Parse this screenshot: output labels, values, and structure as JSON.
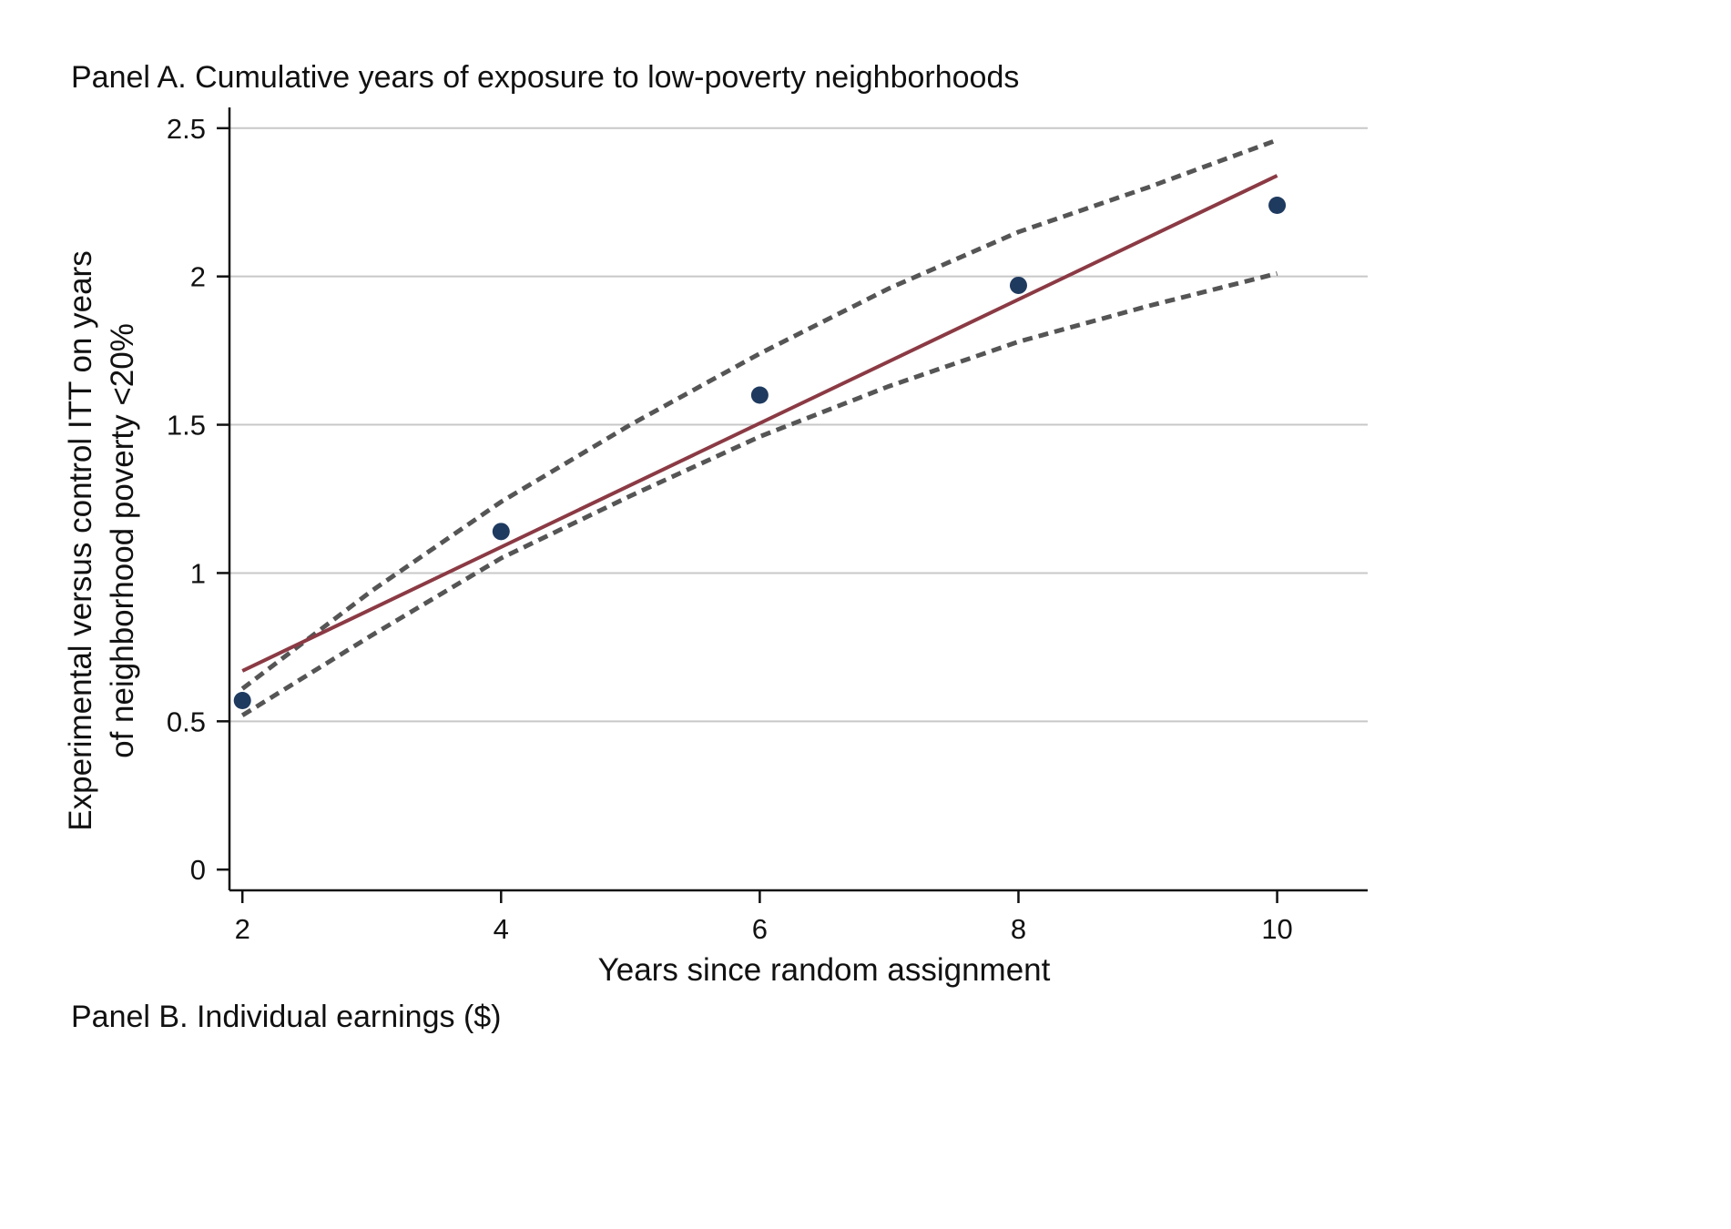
{
  "colors": {
    "fit_line": "#8b3a44",
    "ci_line": "#555555",
    "point": "#1f3a5f",
    "grid": "#c8c8c8",
    "axis": "#111111"
  },
  "chart_data": {
    "type": "scatter",
    "title": "Panel A. Cumulative years of exposure to low-poverty neighborhoods",
    "xlabel": "Years since random assignment",
    "ylabel": [
      "Experimental versus control ITT on years",
      "of neighborhood poverty <20%"
    ],
    "xlim": [
      1.9,
      10.7
    ],
    "ylim": [
      -0.07,
      2.57
    ],
    "x_ticks": [
      2,
      4,
      6,
      8,
      10
    ],
    "y_ticks": [
      0,
      0.5,
      1,
      1.5,
      2,
      2.5
    ],
    "x_tick_labels": [
      "2",
      "4",
      "6",
      "8",
      "10"
    ],
    "y_tick_labels": [
      "0",
      "0.5",
      "1",
      "1.5",
      "2",
      "2.5"
    ],
    "grid": "horizontal",
    "series": [
      {
        "name": "ITT estimates",
        "kind": "points",
        "x": [
          2,
          4,
          6,
          8,
          10
        ],
        "y": [
          0.57,
          1.14,
          1.6,
          1.97,
          2.24
        ]
      },
      {
        "name": "Linear fit",
        "kind": "line",
        "x": [
          2,
          10
        ],
        "y": [
          0.67,
          2.34
        ]
      },
      {
        "name": "Upper 95% CI",
        "kind": "dashed",
        "x": [
          2,
          3,
          4,
          5,
          6,
          7,
          8,
          9,
          10
        ],
        "y": [
          0.61,
          0.94,
          1.24,
          1.5,
          1.74,
          1.96,
          2.15,
          2.3,
          2.46
        ]
      },
      {
        "name": "Lower 95% CI",
        "kind": "dashed",
        "x": [
          2,
          3,
          4,
          5,
          6,
          7,
          8,
          9,
          10
        ],
        "y": [
          0.52,
          0.79,
          1.05,
          1.26,
          1.46,
          1.63,
          1.78,
          1.9,
          2.01
        ]
      }
    ]
  },
  "next_panel_title": "Panel B. Individual earnings ($)"
}
